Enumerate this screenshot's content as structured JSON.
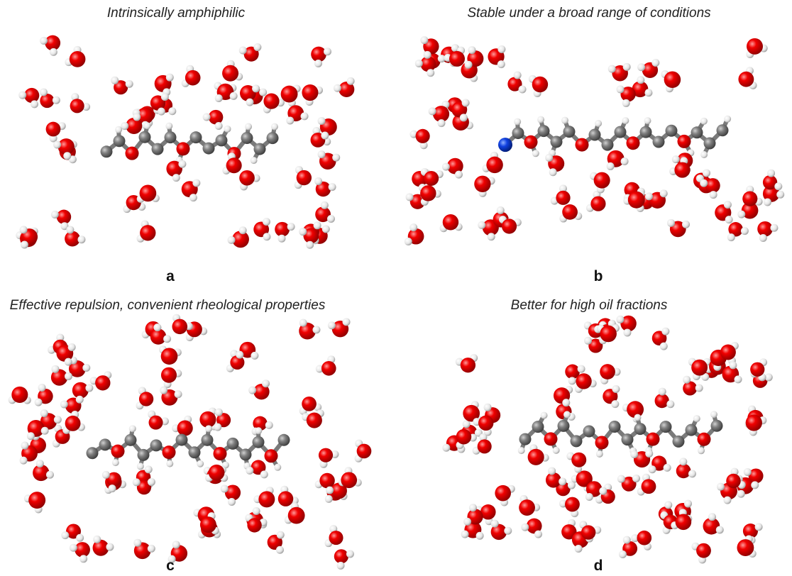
{
  "panels": [
    {
      "title": "Intrinsically amphiphilic",
      "label": "a"
    },
    {
      "title": "Stable under a broad range of conditions",
      "label": "b"
    },
    {
      "title": "Effective repulsion, convenient rheological properties",
      "label": "c"
    },
    {
      "title": "Better for high oil fractions",
      "label": "d"
    }
  ]
}
